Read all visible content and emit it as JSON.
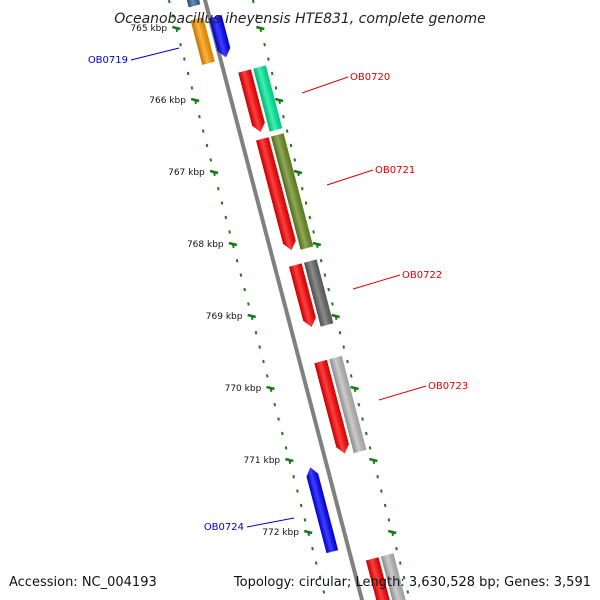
{
  "title": "Oceanobacillus iheyensis HTE831, complete genome",
  "accession": "Accession: NC_004193",
  "summary": "Topology: circular; Length: 3,630,528 bp; Genes: 3,591",
  "colors": {
    "backbone": "#808080",
    "tick": "#1a7a1a",
    "forward_label": "#dd0000",
    "reverse_label": "#0000cc",
    "cds_red": "#ff0000",
    "cds_blue": "#0000ff"
  },
  "kbp_labels": [
    {
      "kbp": 765,
      "label": "765 kbp"
    },
    {
      "kbp": 766,
      "label": "766 kbp"
    },
    {
      "kbp": 767,
      "label": "767 kbp"
    },
    {
      "kbp": 768,
      "label": "768 kbp"
    },
    {
      "kbp": 769,
      "label": "769 kbp"
    },
    {
      "kbp": 770,
      "label": "770 kbp"
    },
    {
      "kbp": 771,
      "label": "771 kbp"
    },
    {
      "kbp": 772,
      "label": "772 kbp"
    }
  ],
  "genes": [
    {
      "name": "OB0719",
      "strand": "reverse",
      "color": "#0000ff"
    },
    {
      "name": "OB0720",
      "strand": "forward",
      "color": "#ff0000"
    },
    {
      "name": "OB0721",
      "strand": "forward",
      "color": "#ff0000"
    },
    {
      "name": "OB0722",
      "strand": "forward",
      "color": "#ff0000"
    },
    {
      "name": "OB0723",
      "strand": "forward",
      "color": "#ff0000"
    },
    {
      "name": "OB0724",
      "strand": "reverse",
      "color": "#0000ff"
    }
  ],
  "feature_colors": {
    "orange": "#ff9900",
    "teal": "#00ee99",
    "olive": "#6b8e23",
    "darkgray": "#666666",
    "lightgray": "#bbbbbb",
    "steel": "#336699"
  }
}
